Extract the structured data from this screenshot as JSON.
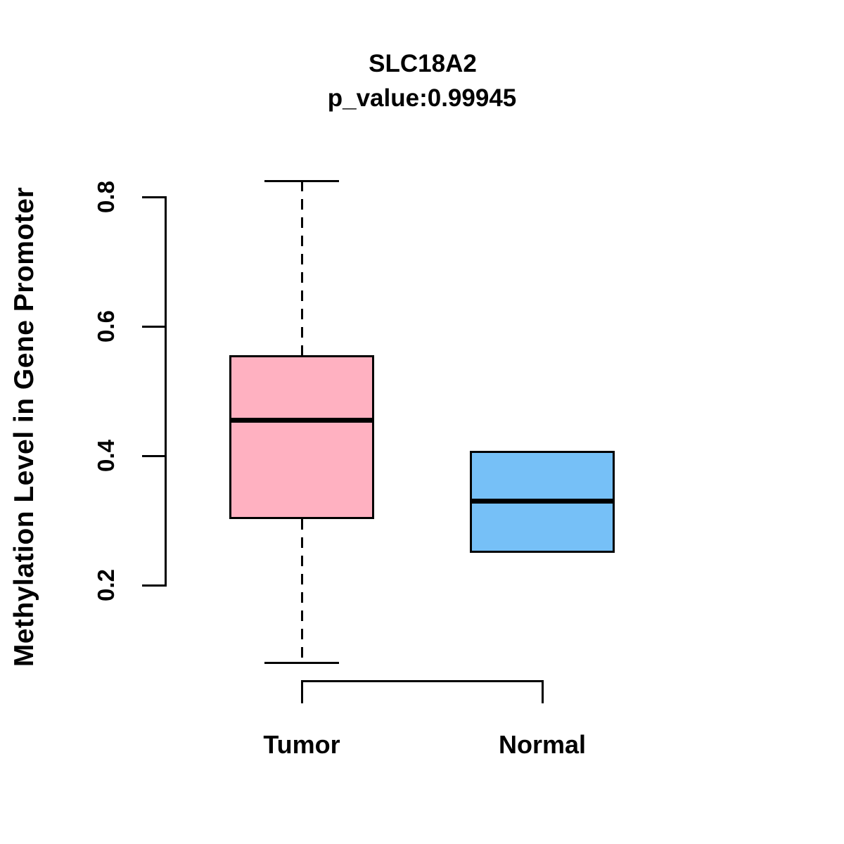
{
  "chart_data": {
    "type": "boxplot",
    "title": "SLC18A2",
    "subtitle": "p_value:0.99945",
    "p_value": "0.99945",
    "ylabel": "Methylation Level in Gene Promoter",
    "xlabel": "",
    "categories": [
      "Tumor",
      "Normal"
    ],
    "y_ticks": [
      0.2,
      0.4,
      0.6,
      0.8
    ],
    "y_tick_labels": [
      "0.2",
      "0.4",
      "0.6",
      "0.8"
    ],
    "ylim": [
      0.05,
      0.85
    ],
    "grid": false,
    "legend": false,
    "series": [
      {
        "name": "Tumor",
        "color": "#FFB1C1",
        "whisker_low": 0.08,
        "q1": 0.302,
        "median": 0.455,
        "q3": 0.555,
        "whisker_high": 0.825
      },
      {
        "name": "Normal",
        "color": "#76C0F7",
        "whisker_low": 0.25,
        "q1": 0.25,
        "median": 0.33,
        "q3": 0.408,
        "whisker_high": 0.408
      }
    ],
    "colors": {
      "tumor": "#FFB1C1",
      "normal": "#76C0F7",
      "line": "#000000"
    }
  }
}
